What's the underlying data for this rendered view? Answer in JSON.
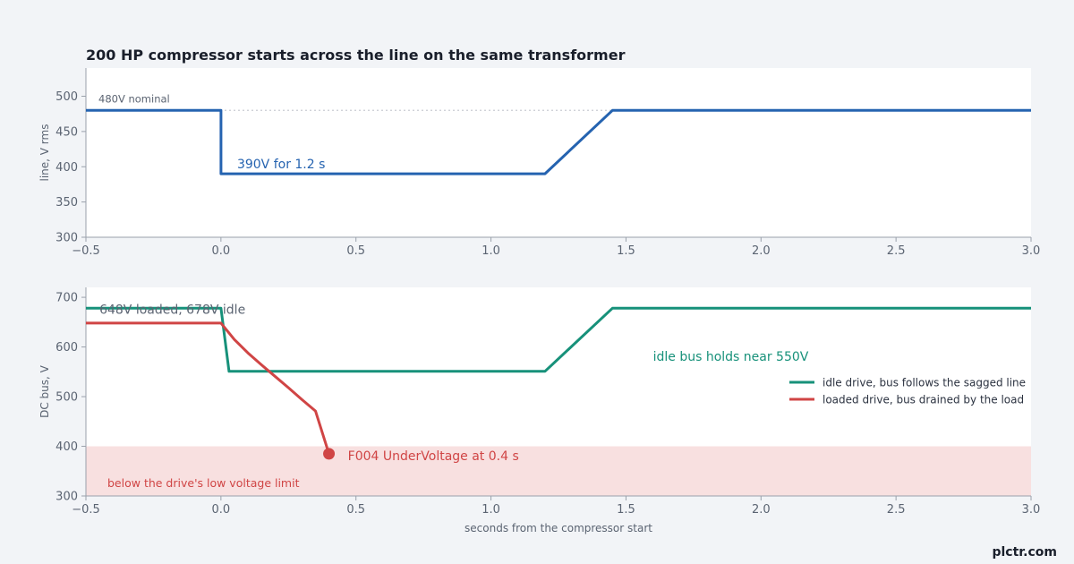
{
  "chart_data": [
    {
      "type": "line",
      "title": "200 HP compressor starts across the line on the same transformer",
      "ylabel": "line, V rms",
      "xlim": [
        -0.5,
        3.0
      ],
      "ylim": [
        300,
        540
      ],
      "x_ticks": [
        "−0.5",
        "0.0",
        "0.5",
        "1.0",
        "1.5",
        "2.0",
        "2.5",
        "3.0"
      ],
      "y_ticks": [
        "300",
        "350",
        "400",
        "450",
        "500"
      ],
      "reference_line": {
        "y": 480,
        "label": "480V nominal",
        "color": "#c9ccd2"
      },
      "series": [
        {
          "color": "#2563b0",
          "points": [
            [
              -0.5,
              480
            ],
            [
              0.0,
              480
            ],
            [
              0.0,
              390
            ],
            [
              1.2,
              390
            ],
            [
              1.45,
              480
            ],
            [
              3.0,
              480
            ]
          ]
        }
      ],
      "annotations": [
        {
          "text": "390V for 1.2 s",
          "x": 0.06,
          "y": 398,
          "color": "#2563b0"
        }
      ]
    },
    {
      "type": "line",
      "ylabel": "DC bus, V",
      "xlabel": "seconds from the compressor start",
      "xlim": [
        -0.5,
        3.0
      ],
      "ylim": [
        300,
        720
      ],
      "x_ticks": [
        "−0.5",
        "0.0",
        "0.5",
        "1.0",
        "1.5",
        "2.0",
        "2.5",
        "3.0"
      ],
      "y_ticks": [
        "300",
        "400",
        "500",
        "600",
        "700"
      ],
      "shaded_band": {
        "y0": 300,
        "y1": 400,
        "label": "below the drive's low voltage limit",
        "color": "#f8e0e0",
        "label_color": "#d04545"
      },
      "series": [
        {
          "name": "idle drive, bus follows the sagged line",
          "color": "#17917a",
          "points": [
            [
              -0.5,
              678
            ],
            [
              0.0,
              678
            ],
            [
              0.03,
              551
            ],
            [
              1.2,
              551
            ],
            [
              1.45,
              678
            ],
            [
              3.0,
              678
            ]
          ]
        },
        {
          "name": "loaded drive, bus drained by the load",
          "color": "#d04545",
          "points": [
            [
              -0.5,
              648
            ],
            [
              0.0,
              648
            ],
            [
              0.05,
              615
            ],
            [
              0.1,
              588
            ],
            [
              0.15,
              564
            ],
            [
              0.2,
              541
            ],
            [
              0.25,
              518
            ],
            [
              0.3,
              494
            ],
            [
              0.35,
              471
            ],
            [
              0.4,
              385
            ]
          ]
        }
      ],
      "markers": [
        {
          "x": 0.4,
          "y": 385,
          "color": "#d04545"
        }
      ],
      "annotations": [
        {
          "text": "648V loaded, 678V idle",
          "x": -0.45,
          "y": 667,
          "color": "#5b6472"
        },
        {
          "text": "idle bus holds near 550V",
          "x": 1.6,
          "y": 572,
          "color": "#17917a"
        },
        {
          "text": "F004 UnderVoltage at 0.4 s",
          "x": 0.47,
          "y": 372,
          "color": "#d04545"
        }
      ],
      "legend": {
        "placement": "right"
      }
    }
  ],
  "brand": "plctr.com"
}
